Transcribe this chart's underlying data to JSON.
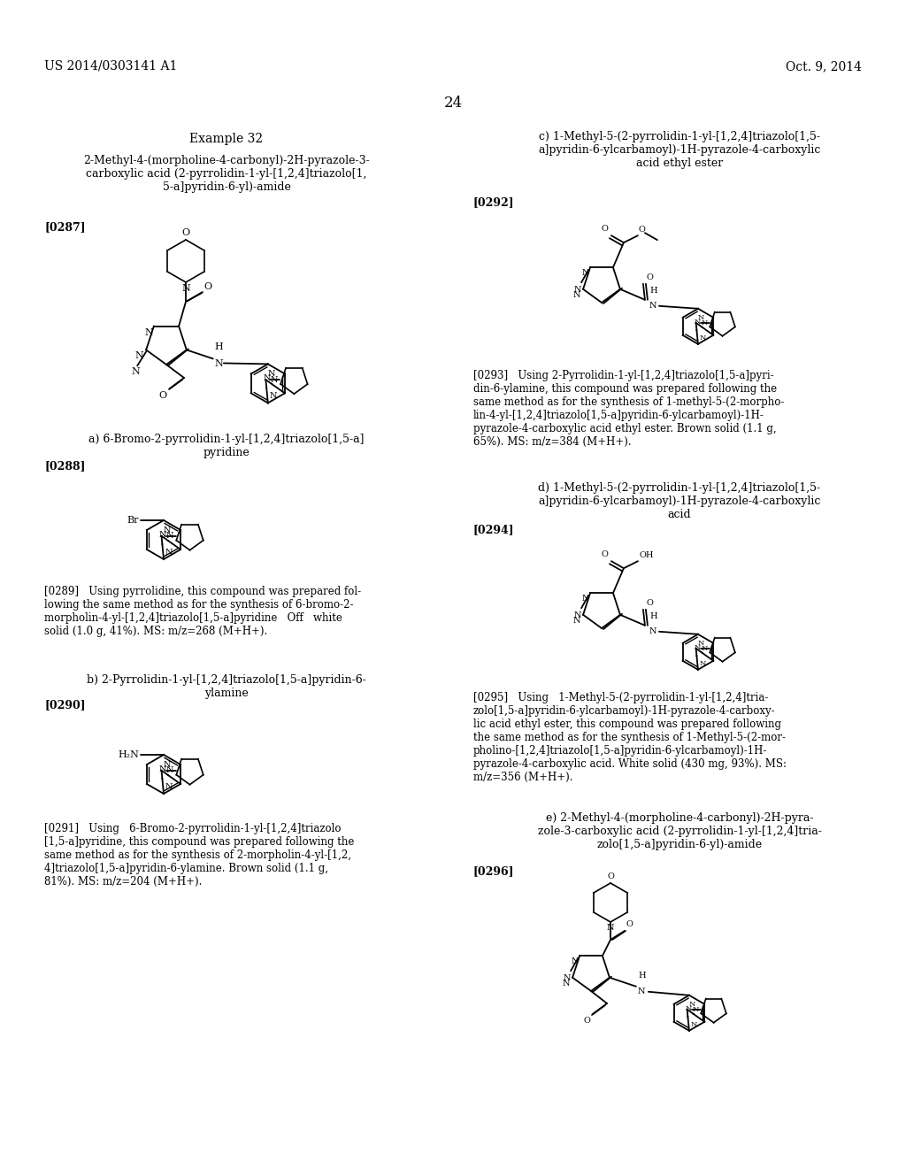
{
  "background_color": "#ffffff",
  "header_left": "US 2014/0303141 A1",
  "header_right": "Oct. 9, 2014",
  "page_number": "24",
  "example_title": "Example 32",
  "compound_name_left": "2-Methyl-4-(morpholine-4-carbonyl)-2H-pyrazole-3-\ncarboxylic acid (2-pyrrolidin-1-yl-[1,2,4]triazolo[1,\n5-a]pyridin-6-yl)-amide",
  "ref0287": "[0287]",
  "sub_a": "a) 6-Bromo-2-pyrrolidin-1-yl-[1,2,4]triazolo[1,5-a]\npyridine",
  "ref0288": "[0288]",
  "text0289": "[0289]   Using pyrrolidine, this compound was prepared fol-\nlowing the same method as for the synthesis of 6-bromo-2-\nmorpholin-4-yl-[1,2,4]triazolo[1,5-a]pyridine   Off   white\nsolid (1.0 g, 41%). MS: m/z=268 (M+H+).",
  "sub_b": "b) 2-Pyrrolidin-1-yl-[1,2,4]triazolo[1,5-a]pyridin-6-\nylamine",
  "ref0290": "[0290]",
  "text0291": "[0291]   Using   6-Bromo-2-pyrrolidin-1-yl-[1,2,4]triazolo\n[1,5-a]pyridine, this compound was prepared following the\nsame method as for the synthesis of 2-morpholin-4-yl-[1,2,\n4]triazolo[1,5-a]pyridin-6-ylamine. Brown solid (1.1 g,\n81%). MS: m/z=204 (M+H+).",
  "sub_c": "c) 1-Methyl-5-(2-pyrrolidin-1-yl-[1,2,4]triazolo[1,5-\na]pyridin-6-ylcarbamoyl)-1H-pyrazole-4-carboxylic\nacid ethyl ester",
  "ref0292": "[0292]",
  "text0293": "[0293]   Using 2-Pyrrolidin-1-yl-[1,2,4]triazolo[1,5-a]pyri-\ndin-6-ylamine, this compound was prepared following the\nsame method as for the synthesis of 1-methyl-5-(2-morpho-\nlin-4-yl-[1,2,4]triazolo[1,5-a]pyridin-6-ylcarbamoyl)-1H-\npyrazole-4-carboxylic acid ethyl ester. Brown solid (1.1 g,\n65%). MS: m/z=384 (M+H+).",
  "sub_d": "d) 1-Methyl-5-(2-pyrrolidin-1-yl-[1,2,4]triazolo[1,5-\na]pyridin-6-ylcarbamoyl)-1H-pyrazole-4-carboxylic\nacid",
  "ref0294": "[0294]",
  "text0295": "[0295]   Using   1-Methyl-5-(2-pyrrolidin-1-yl-[1,2,4]tria-\nzolo[1,5-a]pyridin-6-ylcarbamoyl)-1H-pyrazole-4-carboxy-\nlic acid ethyl ester, this compound was prepared following\nthe same method as for the synthesis of 1-Methyl-5-(2-mor-\npholino-[1,2,4]triazolo[1,5-a]pyridin-6-ylcarbamoyl)-1H-\npyrazole-4-carboxylic acid. White solid (430 mg, 93%). MS:\nm/z=356 (M+H+).",
  "sub_e": "e) 2-Methyl-4-(morpholine-4-carbonyl)-2H-pyra-\nzole-3-carboxylic acid (2-pyrrolidin-1-yl-[1,2,4]tria-\nzolo[1,5-a]pyridin-6-yl)-amide",
  "ref0296": "[0296]"
}
